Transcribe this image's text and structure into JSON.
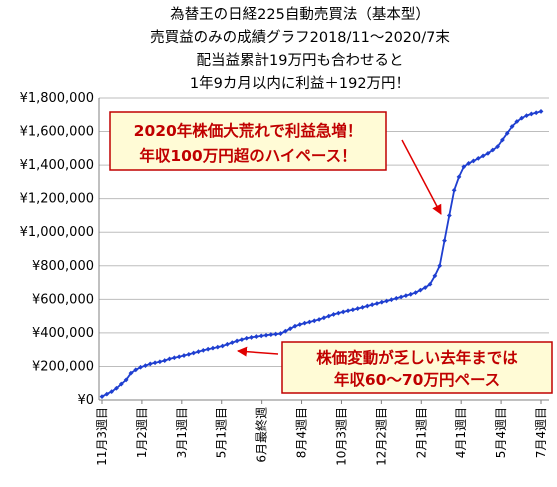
{
  "chart_data": {
    "type": "line",
    "title": [
      "為替王の日経225自動売買法（基本型）",
      "売買益のみの成績グラフ2018/11〜2020/7末",
      "配当益累計19万円も合わせると",
      "1年9カ月以内に利益＋192万円！"
    ],
    "xlabel": "",
    "ylabel": "",
    "ylim": [
      0,
      1800000
    ],
    "y_ticks": [
      "¥0",
      "¥200,000",
      "¥400,000",
      "¥600,000",
      "¥800,000",
      "¥1,000,000",
      "¥1,200,000",
      "¥1,400,000",
      "¥1,600,000",
      "¥1,800,000"
    ],
    "x_tick_labels": [
      "11月3週目",
      "1月2週目",
      "3月1週目",
      "5月1週目",
      "6月最終週",
      "8月4週目",
      "10月3週目",
      "12月2週目",
      "2月1週目",
      "4月1週目",
      "5月4週目",
      "7月4週目"
    ],
    "grid": true,
    "series": [
      {
        "color": "#1f3fd0",
        "values": [
          20000,
          35000,
          50000,
          70000,
          95000,
          120000,
          160000,
          180000,
          195000,
          205000,
          215000,
          222000,
          228000,
          235000,
          245000,
          252000,
          258000,
          265000,
          272000,
          280000,
          288000,
          296000,
          303000,
          309000,
          315000,
          322000,
          332000,
          342000,
          352000,
          360000,
          368000,
          373000,
          378000,
          382000,
          386000,
          390000,
          393000,
          396000,
          410000,
          425000,
          440000,
          450000,
          458000,
          465000,
          472000,
          480000,
          490000,
          500000,
          510000,
          518000,
          525000,
          532000,
          538000,
          545000,
          552000,
          560000,
          568000,
          575000,
          583000,
          590000,
          598000,
          606000,
          614000,
          622000,
          630000,
          640000,
          655000,
          670000,
          690000,
          740000,
          800000,
          950000,
          1100000,
          1250000,
          1330000,
          1390000,
          1410000,
          1425000,
          1440000,
          1455000,
          1470000,
          1490000,
          1510000,
          1550000,
          1590000,
          1630000,
          1660000,
          1680000,
          1695000,
          1705000,
          1712000,
          1720000
        ]
      }
    ],
    "annotations": [
      {
        "lines": [
          "2020年株価大荒れで利益急増！",
          "年収100万円超のハイペース！"
        ]
      },
      {
        "lines": [
          "株価変動が乏しい去年までは",
          "年収60〜70万円ペース"
        ]
      }
    ]
  },
  "colors": {
    "line": "#1f3fd0",
    "marker": "#1f3fd0",
    "callout_text": "#c00000",
    "callout_fill": "#fffbd6",
    "callout_border": "#c00000",
    "arrow": "#e00000",
    "grid": "#bdbdbd"
  }
}
